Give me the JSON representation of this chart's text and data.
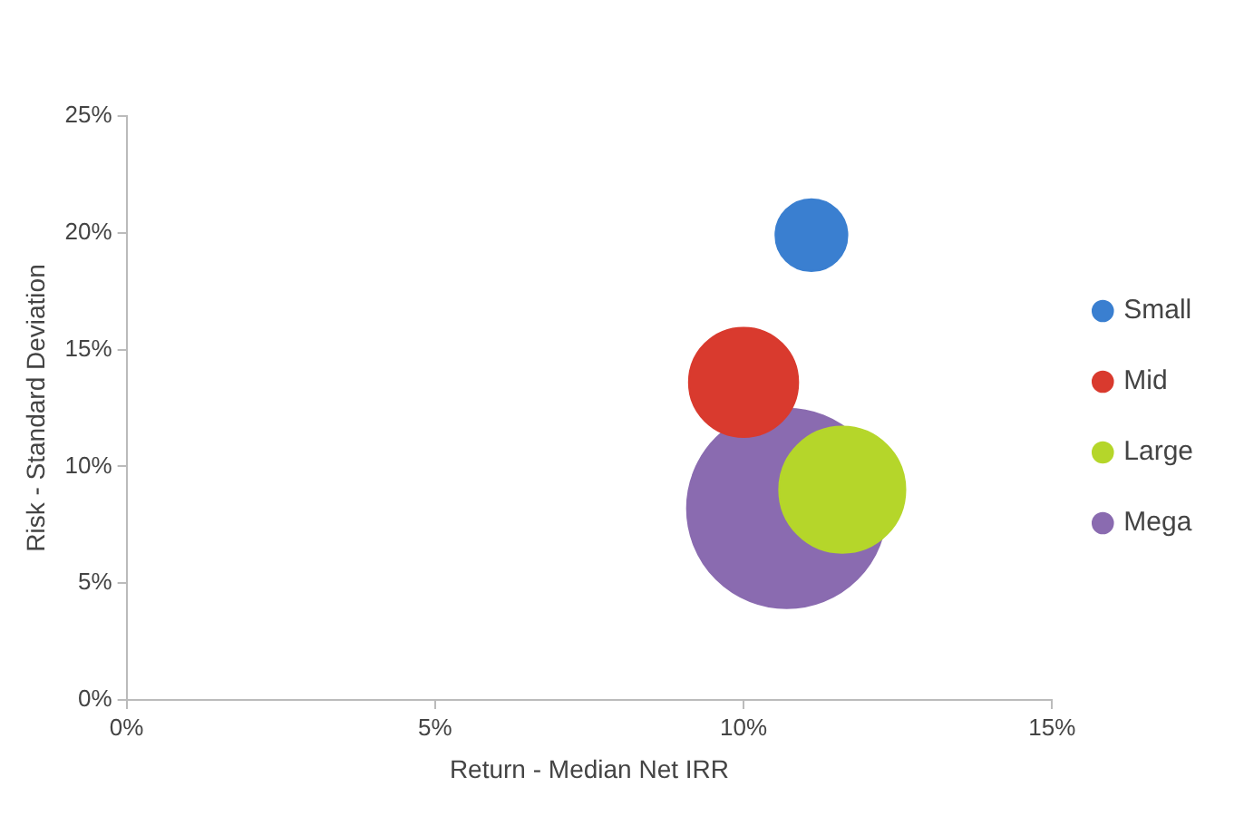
{
  "chart_data": {
    "type": "bubble",
    "xlabel": "Return - Median Net IRR",
    "ylabel": "Risk - Standard Deviation",
    "xlim": [
      0,
      15
    ],
    "ylim": [
      0,
      25
    ],
    "xticks": [
      {
        "value": 0,
        "label": "0%"
      },
      {
        "value": 5,
        "label": "5%"
      },
      {
        "value": 10,
        "label": "10%"
      },
      {
        "value": 15,
        "label": "15%"
      }
    ],
    "yticks": [
      {
        "value": 0,
        "label": "0%"
      },
      {
        "value": 5,
        "label": "5%"
      },
      {
        "value": 10,
        "label": "10%"
      },
      {
        "value": 15,
        "label": "15%"
      },
      {
        "value": 20,
        "label": "20%"
      },
      {
        "value": 25,
        "label": "25%"
      }
    ],
    "grid": false,
    "legend": "right",
    "series": [
      {
        "name": "Small",
        "color": "#3a7fd0",
        "x": [
          11.1
        ],
        "values": [
          19.9
        ],
        "sizes": [
          0.13
        ]
      },
      {
        "name": "Mid",
        "color": "#d93a2e",
        "x": [
          10.0
        ],
        "values": [
          13.6
        ],
        "sizes": [
          0.3
        ]
      },
      {
        "name": "Large",
        "color": "#b5d62a",
        "x": [
          11.6
        ],
        "values": [
          9.0
        ],
        "sizes": [
          0.4
        ]
      },
      {
        "name": "Mega",
        "color": "#8a6bb0",
        "x": [
          10.7
        ],
        "values": [
          8.2
        ],
        "sizes": [
          1
        ]
      }
    ]
  }
}
